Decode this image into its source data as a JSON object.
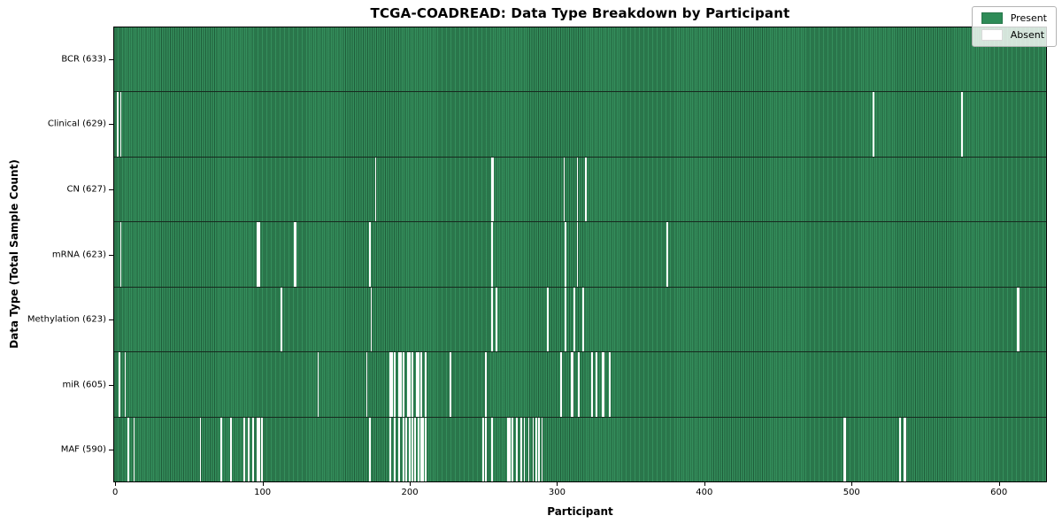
{
  "chart_data": {
    "type": "heatmap",
    "title": "TCGA-COADREAD: Data Type Breakdown by Participant",
    "xlabel": "Participant",
    "ylabel": "Data Type (Total Sample Count)",
    "n_participants": 633,
    "x_ticks": [
      0,
      100,
      200,
      300,
      400,
      500,
      600
    ],
    "legend_position": "upper right",
    "grid": false,
    "colors": {
      "present": "#2e8b57",
      "absent": "#ffffff"
    },
    "legend": [
      {
        "label": "Present",
        "color": "#2e8b57"
      },
      {
        "label": "Absent",
        "color": "#ffffff"
      }
    ],
    "rows": [
      {
        "label": "BCR",
        "count": 633,
        "absent": []
      },
      {
        "label": "Clinical",
        "count": 629,
        "absent": [
          2,
          4,
          515,
          575
        ]
      },
      {
        "label": "CN",
        "count": 627,
        "absent": [
          177,
          256,
          257,
          305,
          314,
          320
        ]
      },
      {
        "label": "mRNA",
        "count": 623,
        "absent": [
          4,
          97,
          98,
          122,
          123,
          173,
          256,
          306,
          314,
          375
        ]
      },
      {
        "label": "Methylation",
        "count": 623,
        "absent": [
          113,
          174,
          256,
          259,
          294,
          306,
          312,
          318,
          613,
          614
        ]
      },
      {
        "label": "miR",
        "count": 605,
        "absent": [
          3,
          7,
          138,
          171,
          187,
          188,
          190,
          193,
          194,
          196,
          199,
          200,
          202,
          205,
          206,
          208,
          211,
          228,
          252,
          303,
          310,
          311,
          315,
          324,
          327,
          331,
          332,
          336
        ]
      },
      {
        "label": "MAF",
        "count": 590,
        "absent": [
          9,
          13,
          58,
          72,
          79,
          88,
          91,
          94,
          97,
          98,
          100,
          173,
          187,
          190,
          193,
          196,
          198,
          200,
          202,
          204,
          206,
          208,
          209,
          211,
          250,
          252,
          256,
          267,
          268,
          270,
          273,
          276,
          278,
          281,
          284,
          286,
          288,
          290,
          495,
          496,
          533,
          536,
          537
        ]
      }
    ]
  }
}
